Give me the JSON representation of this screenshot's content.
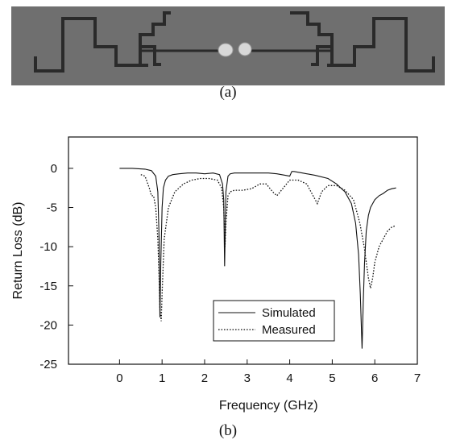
{
  "figure": {
    "caption_a": "(a)",
    "caption_b": "(b)"
  },
  "photo": {
    "icon": "meander-dipole-antenna-photo",
    "colors": {
      "substrate": "#6f6f6f",
      "trace": "#2a2a2a",
      "solder": "#d8d8d8"
    }
  },
  "chart_data": {
    "type": "line",
    "xlabel": "Frequency (GHz)",
    "ylabel": "Return Loss (dB)",
    "xlim": [
      -1.2,
      7
    ],
    "ylim": [
      -25,
      4
    ],
    "xticks": [
      0,
      1,
      2,
      3,
      4,
      5,
      6,
      7
    ],
    "yticks": [
      0,
      -5,
      -10,
      -15,
      -20,
      -25
    ],
    "grid": false,
    "legend": {
      "position": "bottom-center",
      "entries": [
        "Simulated",
        "Measured"
      ]
    },
    "series": [
      {
        "name": "Simulated",
        "style": "solid",
        "x": [
          0,
          0.3,
          0.6,
          0.75,
          0.85,
          0.9,
          0.93,
          0.95,
          0.97,
          1.0,
          1.03,
          1.08,
          1.15,
          1.25,
          1.4,
          1.6,
          1.8,
          2.0,
          2.2,
          2.35,
          2.42,
          2.45,
          2.47,
          2.5,
          2.55,
          2.6,
          2.7,
          2.9,
          3.1,
          3.3,
          3.5,
          3.7,
          3.9,
          4.0,
          4.05,
          4.1,
          4.3,
          4.6,
          4.9,
          5.1,
          5.3,
          5.45,
          5.55,
          5.62,
          5.66,
          5.7,
          5.73,
          5.76,
          5.8,
          5.85,
          5.9,
          6.0,
          6.1,
          6.2,
          6.3,
          6.4,
          6.5
        ],
        "y": [
          0,
          0,
          -0.1,
          -0.3,
          -1.0,
          -3.0,
          -9.0,
          -19.0,
          -12.0,
          -5.0,
          -2.5,
          -1.5,
          -1.0,
          -0.8,
          -0.7,
          -0.6,
          -0.6,
          -0.7,
          -0.6,
          -0.8,
          -2.0,
          -4.0,
          -12.5,
          -3.0,
          -1.0,
          -0.7,
          -0.6,
          -0.6,
          -0.6,
          -0.6,
          -0.6,
          -0.7,
          -0.9,
          -1.0,
          -0.4,
          -0.4,
          -0.6,
          -0.9,
          -1.3,
          -2.0,
          -3.0,
          -4.5,
          -7.0,
          -11.0,
          -16.0,
          -23.0,
          -17.0,
          -12.0,
          -8.0,
          -6.0,
          -5.0,
          -4.0,
          -3.5,
          -3.2,
          -2.8,
          -2.6,
          -2.5
        ]
      },
      {
        "name": "Measured",
        "style": "dotted",
        "x": [
          0.5,
          0.6,
          0.7,
          0.75,
          0.8,
          0.85,
          0.9,
          0.93,
          0.95,
          0.98,
          1.0,
          1.05,
          1.15,
          1.3,
          1.5,
          1.7,
          1.9,
          2.1,
          2.3,
          2.4,
          2.45,
          2.48,
          2.5,
          2.55,
          2.6,
          2.7,
          2.9,
          3.1,
          3.3,
          3.45,
          3.6,
          3.7,
          3.85,
          4.0,
          4.2,
          4.4,
          4.55,
          4.65,
          4.75,
          4.9,
          5.1,
          5.3,
          5.5,
          5.65,
          5.75,
          5.85,
          5.9,
          5.95,
          6.0,
          6.1,
          6.2,
          6.3,
          6.4,
          6.5
        ],
        "y": [
          -0.8,
          -1.0,
          -2.5,
          -3.5,
          -3.5,
          -5.0,
          -9.0,
          -14.0,
          -18.0,
          -19.5,
          -16.0,
          -9.0,
          -5.0,
          -3.0,
          -2.0,
          -1.5,
          -1.3,
          -1.3,
          -1.5,
          -2.5,
          -5.0,
          -10.0,
          -7.0,
          -3.5,
          -3.0,
          -2.8,
          -2.8,
          -2.6,
          -2.0,
          -2.0,
          -3.0,
          -3.5,
          -2.5,
          -1.5,
          -1.5,
          -2.0,
          -3.5,
          -4.5,
          -3.0,
          -2.2,
          -2.2,
          -2.8,
          -4.0,
          -7.0,
          -10.0,
          -14.0,
          -15.3,
          -14.0,
          -12.0,
          -10.0,
          -9.0,
          -8.0,
          -7.5,
          -7.3
        ]
      }
    ]
  }
}
